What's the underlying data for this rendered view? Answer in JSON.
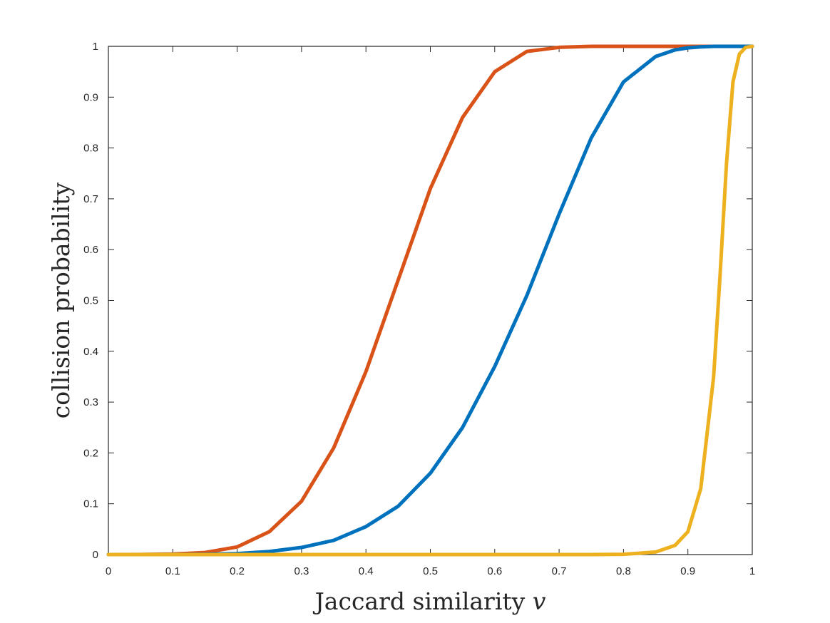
{
  "chart_data": {
    "type": "line",
    "title": "",
    "xlabel": "Jaccard similarity ",
    "xlabel_var": "v",
    "ylabel": "collision probability",
    "xlim": [
      0,
      1
    ],
    "ylim": [
      0,
      1
    ],
    "x_ticks": [
      0,
      0.1,
      0.2,
      0.3,
      0.4,
      0.5,
      0.6,
      0.7,
      0.8,
      0.9,
      1
    ],
    "x_tick_labels": [
      "0",
      "0.1",
      "0.2",
      "0.3",
      "0.4",
      "0.5",
      "0.6",
      "0.7",
      "0.8",
      "0.9",
      "1"
    ],
    "y_ticks": [
      0,
      0.1,
      0.2,
      0.3,
      0.4,
      0.5,
      0.6,
      0.7,
      0.8,
      0.9,
      1
    ],
    "y_tick_labels": [
      "0",
      "0.1",
      "0.2",
      "0.3",
      "0.4",
      "0.5",
      "0.6",
      "0.7",
      "0.8",
      "0.9",
      "1"
    ],
    "grid": false,
    "legend": "none",
    "x": [
      0,
      0.05,
      0.1,
      0.15,
      0.2,
      0.25,
      0.3,
      0.35,
      0.4,
      0.45,
      0.5,
      0.55,
      0.6,
      0.65,
      0.7,
      0.75,
      0.8,
      0.85,
      0.88,
      0.9,
      0.92,
      0.94,
      0.95,
      0.96,
      0.97,
      0.98,
      0.99,
      1
    ],
    "series": [
      {
        "name": "orange",
        "color": "#D95319",
        "values": [
          0,
          0.0001,
          0.001,
          0.004,
          0.015,
          0.045,
          0.105,
          0.21,
          0.36,
          0.54,
          0.72,
          0.86,
          0.95,
          0.99,
          0.998,
          1,
          1,
          1,
          1,
          1,
          1,
          1,
          1,
          1,
          1,
          1,
          1,
          1
        ]
      },
      {
        "name": "blue",
        "color": "#0072BD",
        "values": [
          0,
          0,
          0.0001,
          0.0006,
          0.002,
          0.006,
          0.014,
          0.028,
          0.055,
          0.095,
          0.16,
          0.25,
          0.37,
          0.51,
          0.67,
          0.82,
          0.93,
          0.98,
          0.993,
          0.997,
          0.999,
          1,
          1,
          1,
          1,
          1,
          1,
          1
        ]
      },
      {
        "name": "yellow",
        "color": "#EDB120",
        "values": [
          0,
          0,
          0,
          0,
          0,
          0,
          0,
          0,
          0,
          0,
          0,
          0,
          0,
          0,
          0,
          0,
          0.0005,
          0.005,
          0.018,
          0.045,
          0.13,
          0.35,
          0.55,
          0.77,
          0.93,
          0.985,
          0.998,
          1
        ]
      }
    ]
  }
}
